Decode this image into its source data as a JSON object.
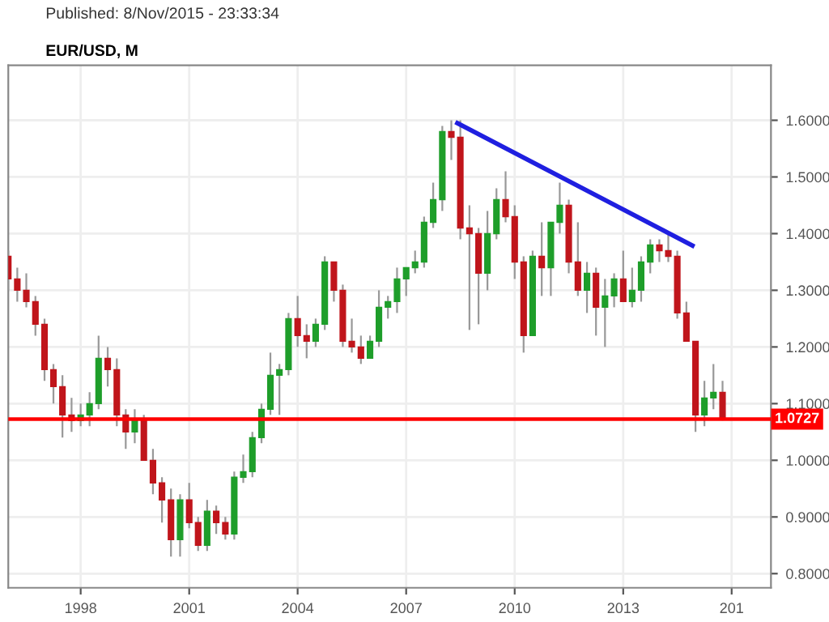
{
  "chart_data": {
    "type": "candlestick",
    "title": "EUR/USD, M",
    "subtitle": "Published: 8/Nov/2015 - 23:33:34",
    "x": [
      "1996-01",
      "1996-04",
      "1996-07",
      "1996-10",
      "1997-01",
      "1997-04",
      "1997-07",
      "1997-10",
      "1998-01",
      "1998-04",
      "1998-07",
      "1998-10",
      "1999-01",
      "1999-04",
      "1999-07",
      "1999-10",
      "2000-01",
      "2000-04",
      "2000-07",
      "2000-10",
      "2001-01",
      "2001-04",
      "2001-07",
      "2001-10",
      "2002-01",
      "2002-04",
      "2002-07",
      "2002-10",
      "2003-01",
      "2003-04",
      "2003-07",
      "2003-10",
      "2004-01",
      "2004-04",
      "2004-07",
      "2004-10",
      "2005-01",
      "2005-04",
      "2005-07",
      "2005-10",
      "2006-01",
      "2006-04",
      "2006-07",
      "2006-10",
      "2007-01",
      "2007-04",
      "2007-07",
      "2007-10",
      "2008-01",
      "2008-04",
      "2008-07",
      "2008-10",
      "2009-01",
      "2009-04",
      "2009-07",
      "2009-10",
      "2010-01",
      "2010-04",
      "2010-07",
      "2010-10",
      "2011-01",
      "2011-04",
      "2011-07",
      "2011-10",
      "2012-01",
      "2012-04",
      "2012-07",
      "2012-10",
      "2013-01",
      "2013-04",
      "2013-07",
      "2013-10",
      "2014-01",
      "2014-04",
      "2014-07",
      "2014-10",
      "2015-01",
      "2015-04",
      "2015-07",
      "2015-10"
    ],
    "ohlc": [
      [
        1.36,
        1.37,
        1.3,
        1.32
      ],
      [
        1.32,
        1.34,
        1.28,
        1.3
      ],
      [
        1.3,
        1.33,
        1.27,
        1.28
      ],
      [
        1.28,
        1.29,
        1.22,
        1.24
      ],
      [
        1.24,
        1.25,
        1.14,
        1.16
      ],
      [
        1.16,
        1.17,
        1.1,
        1.13
      ],
      [
        1.13,
        1.15,
        1.04,
        1.08
      ],
      [
        1.08,
        1.11,
        1.05,
        1.07
      ],
      [
        1.07,
        1.1,
        1.06,
        1.08
      ],
      [
        1.08,
        1.12,
        1.06,
        1.1
      ],
      [
        1.1,
        1.22,
        1.09,
        1.18
      ],
      [
        1.18,
        1.2,
        1.13,
        1.16
      ],
      [
        1.16,
        1.18,
        1.06,
        1.08
      ],
      [
        1.08,
        1.09,
        1.02,
        1.05
      ],
      [
        1.05,
        1.09,
        1.03,
        1.07
      ],
      [
        1.07,
        1.08,
        1.0,
        1.0
      ],
      [
        1.0,
        1.02,
        0.94,
        0.96
      ],
      [
        0.96,
        0.97,
        0.89,
        0.93
      ],
      [
        0.93,
        0.95,
        0.83,
        0.86
      ],
      [
        0.86,
        0.94,
        0.83,
        0.93
      ],
      [
        0.93,
        0.96,
        0.88,
        0.89
      ],
      [
        0.89,
        0.9,
        0.84,
        0.85
      ],
      [
        0.85,
        0.93,
        0.84,
        0.91
      ],
      [
        0.91,
        0.92,
        0.87,
        0.89
      ],
      [
        0.89,
        0.9,
        0.86,
        0.87
      ],
      [
        0.87,
        0.98,
        0.86,
        0.97
      ],
      [
        0.97,
        1.01,
        0.96,
        0.98
      ],
      [
        0.98,
        1.05,
        0.97,
        1.04
      ],
      [
        1.04,
        1.1,
        1.03,
        1.09
      ],
      [
        1.09,
        1.19,
        1.08,
        1.15
      ],
      [
        1.15,
        1.17,
        1.08,
        1.16
      ],
      [
        1.16,
        1.26,
        1.15,
        1.25
      ],
      [
        1.25,
        1.29,
        1.2,
        1.22
      ],
      [
        1.22,
        1.24,
        1.18,
        1.21
      ],
      [
        1.21,
        1.25,
        1.2,
        1.24
      ],
      [
        1.24,
        1.36,
        1.23,
        1.35
      ],
      [
        1.35,
        1.35,
        1.28,
        1.3
      ],
      [
        1.3,
        1.31,
        1.2,
        1.21
      ],
      [
        1.21,
        1.25,
        1.19,
        1.2
      ],
      [
        1.2,
        1.22,
        1.17,
        1.18
      ],
      [
        1.18,
        1.22,
        1.18,
        1.21
      ],
      [
        1.21,
        1.3,
        1.2,
        1.27
      ],
      [
        1.27,
        1.29,
        1.25,
        1.28
      ],
      [
        1.28,
        1.34,
        1.26,
        1.32
      ],
      [
        1.32,
        1.34,
        1.29,
        1.34
      ],
      [
        1.34,
        1.37,
        1.33,
        1.35
      ],
      [
        1.35,
        1.43,
        1.34,
        1.42
      ],
      [
        1.42,
        1.49,
        1.41,
        1.46
      ],
      [
        1.46,
        1.59,
        1.44,
        1.58
      ],
      [
        1.58,
        1.6,
        1.53,
        1.57
      ],
      [
        1.57,
        1.6,
        1.39,
        1.41
      ],
      [
        1.41,
        1.45,
        1.23,
        1.4
      ],
      [
        1.4,
        1.41,
        1.24,
        1.33
      ],
      [
        1.33,
        1.44,
        1.3,
        1.4
      ],
      [
        1.4,
        1.48,
        1.39,
        1.46
      ],
      [
        1.46,
        1.51,
        1.42,
        1.43
      ],
      [
        1.43,
        1.45,
        1.32,
        1.35
      ],
      [
        1.35,
        1.36,
        1.19,
        1.22
      ],
      [
        1.22,
        1.37,
        1.22,
        1.36
      ],
      [
        1.36,
        1.42,
        1.29,
        1.34
      ],
      [
        1.34,
        1.42,
        1.29,
        1.42
      ],
      [
        1.42,
        1.49,
        1.4,
        1.45
      ],
      [
        1.45,
        1.46,
        1.33,
        1.35
      ],
      [
        1.35,
        1.42,
        1.29,
        1.3
      ],
      [
        1.3,
        1.35,
        1.26,
        1.33
      ],
      [
        1.33,
        1.34,
        1.22,
        1.27
      ],
      [
        1.27,
        1.32,
        1.2,
        1.29
      ],
      [
        1.29,
        1.33,
        1.27,
        1.32
      ],
      [
        1.32,
        1.37,
        1.28,
        1.28
      ],
      [
        1.28,
        1.34,
        1.27,
        1.3
      ],
      [
        1.3,
        1.36,
        1.28,
        1.35
      ],
      [
        1.35,
        1.39,
        1.33,
        1.38
      ],
      [
        1.38,
        1.39,
        1.35,
        1.37
      ],
      [
        1.37,
        1.4,
        1.35,
        1.36
      ],
      [
        1.36,
        1.37,
        1.25,
        1.26
      ],
      [
        1.26,
        1.28,
        1.21,
        1.21
      ],
      [
        1.21,
        1.21,
        1.05,
        1.08
      ],
      [
        1.08,
        1.14,
        1.06,
        1.11
      ],
      [
        1.11,
        1.17,
        1.09,
        1.12
      ],
      [
        1.12,
        1.14,
        1.07,
        1.0727
      ]
    ],
    "colors": [
      "#c0151b",
      "#c0151b",
      "#c0151b",
      "#c0151b",
      "#c0151b",
      "#c0151b",
      "#c0151b",
      "#c0151b",
      "#1e9e2a",
      "#1e9e2a",
      "#1e9e2a",
      "#c0151b",
      "#c0151b",
      "#c0151b",
      "#1e9e2a",
      "#c0151b",
      "#c0151b",
      "#c0151b",
      "#c0151b",
      "#1e9e2a",
      "#c0151b",
      "#c0151b",
      "#1e9e2a",
      "#c0151b",
      "#c0151b",
      "#1e9e2a",
      "#1e9e2a",
      "#1e9e2a",
      "#1e9e2a",
      "#1e9e2a",
      "#1e9e2a",
      "#1e9e2a",
      "#c0151b",
      "#c0151b",
      "#1e9e2a",
      "#1e9e2a",
      "#c0151b",
      "#c0151b",
      "#c0151b",
      "#c0151b",
      "#1e9e2a",
      "#1e9e2a",
      "#1e9e2a",
      "#1e9e2a",
      "#1e9e2a",
      "#1e9e2a",
      "#1e9e2a",
      "#1e9e2a",
      "#1e9e2a",
      "#c0151b",
      "#c0151b",
      "#c0151b",
      "#c0151b",
      "#1e9e2a",
      "#1e9e2a",
      "#c0151b",
      "#c0151b",
      "#c0151b",
      "#1e9e2a",
      "#c0151b",
      "#1e9e2a",
      "#1e9e2a",
      "#c0151b",
      "#c0151b",
      "#1e9e2a",
      "#c0151b",
      "#1e9e2a",
      "#1e9e2a",
      "#c0151b",
      "#1e9e2a",
      "#1e9e2a",
      "#1e9e2a",
      "#c0151b",
      "#c0151b",
      "#c0151b",
      "#c0151b",
      "#c0151b",
      "#1e9e2a",
      "#1e9e2a",
      "#c0151b"
    ],
    "series": [
      {
        "type": "line",
        "x": [
          "2008-06",
          "2014-12"
        ],
        "values": [
          1.595,
          1.379
        ],
        "color": "#1f1fe0"
      }
    ],
    "ref_lines": [
      {
        "axis": "y",
        "value": 1.0727,
        "label": "1.0727",
        "color": "#ff0000"
      }
    ],
    "xlim": [
      "1996-01",
      "2017-02"
    ],
    "xticks": [
      {
        "value": "1998-01",
        "label": "1998"
      },
      {
        "value": "2001-01",
        "label": "2001"
      },
      {
        "value": "2004-01",
        "label": "2004"
      },
      {
        "value": "2007-01",
        "label": "2007"
      },
      {
        "value": "2010-01",
        "label": "2010"
      },
      {
        "value": "2013-01",
        "label": "2013"
      },
      {
        "value": "2016-01",
        "label": "201"
      }
    ],
    "ylim": [
      0.775,
      1.697
    ],
    "yticks": [
      {
        "value": 0.8,
        "label": "0.8000"
      },
      {
        "value": 0.9,
        "label": "0.9000"
      },
      {
        "value": 1.0,
        "label": "1.0000"
      },
      {
        "value": 1.1,
        "label": "1.1000"
      },
      {
        "value": 1.2,
        "label": "1.2000"
      },
      {
        "value": 1.3,
        "label": "1.3000"
      },
      {
        "value": 1.4,
        "label": "1.4000"
      },
      {
        "value": 1.5,
        "label": "1.5000"
      },
      {
        "value": 1.6,
        "label": "1.6000"
      }
    ],
    "grid": true,
    "line_style": "solid"
  }
}
